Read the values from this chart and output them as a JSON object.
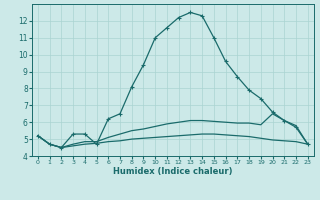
{
  "xlabel": "Humidex (Indice chaleur)",
  "bg_color": "#cce9e8",
  "grid_color": "#aad4d2",
  "line_color": "#1a6b6b",
  "xlim": [
    -0.5,
    23.5
  ],
  "ylim": [
    4,
    13
  ],
  "xticks": [
    0,
    1,
    2,
    3,
    4,
    5,
    6,
    7,
    8,
    9,
    10,
    11,
    12,
    13,
    14,
    15,
    16,
    17,
    18,
    19,
    20,
    21,
    22,
    23
  ],
  "yticks": [
    4,
    5,
    6,
    7,
    8,
    9,
    10,
    11,
    12
  ],
  "series1_x": [
    0,
    1,
    2,
    3,
    4,
    5,
    6,
    7,
    8,
    9,
    10,
    11,
    12,
    13,
    14,
    15,
    16,
    17,
    18,
    19,
    20,
    21,
    22,
    23
  ],
  "series1_y": [
    5.2,
    4.7,
    4.5,
    5.3,
    5.3,
    4.7,
    6.2,
    6.5,
    8.1,
    9.4,
    11.0,
    11.6,
    12.2,
    12.5,
    12.3,
    11.0,
    9.6,
    8.7,
    7.9,
    7.4,
    6.6,
    6.1,
    5.7,
    4.7
  ],
  "series2_x": [
    0,
    1,
    2,
    3,
    4,
    5,
    6,
    7,
    8,
    9,
    10,
    11,
    12,
    13,
    14,
    15,
    16,
    17,
    18,
    19,
    20,
    21,
    22,
    23
  ],
  "series2_y": [
    5.2,
    4.7,
    4.5,
    4.6,
    4.7,
    4.75,
    4.85,
    4.9,
    5.0,
    5.05,
    5.1,
    5.15,
    5.2,
    5.25,
    5.3,
    5.3,
    5.25,
    5.2,
    5.15,
    5.05,
    4.95,
    4.9,
    4.85,
    4.7
  ],
  "series3_x": [
    0,
    1,
    2,
    3,
    4,
    5,
    6,
    7,
    8,
    9,
    10,
    11,
    12,
    13,
    14,
    15,
    16,
    17,
    18,
    19,
    20,
    21,
    22,
    23
  ],
  "series3_y": [
    5.2,
    4.7,
    4.5,
    4.7,
    4.85,
    4.85,
    5.1,
    5.3,
    5.5,
    5.6,
    5.75,
    5.9,
    6.0,
    6.1,
    6.1,
    6.05,
    6.0,
    5.95,
    5.95,
    5.85,
    6.5,
    6.1,
    5.8,
    4.7
  ]
}
